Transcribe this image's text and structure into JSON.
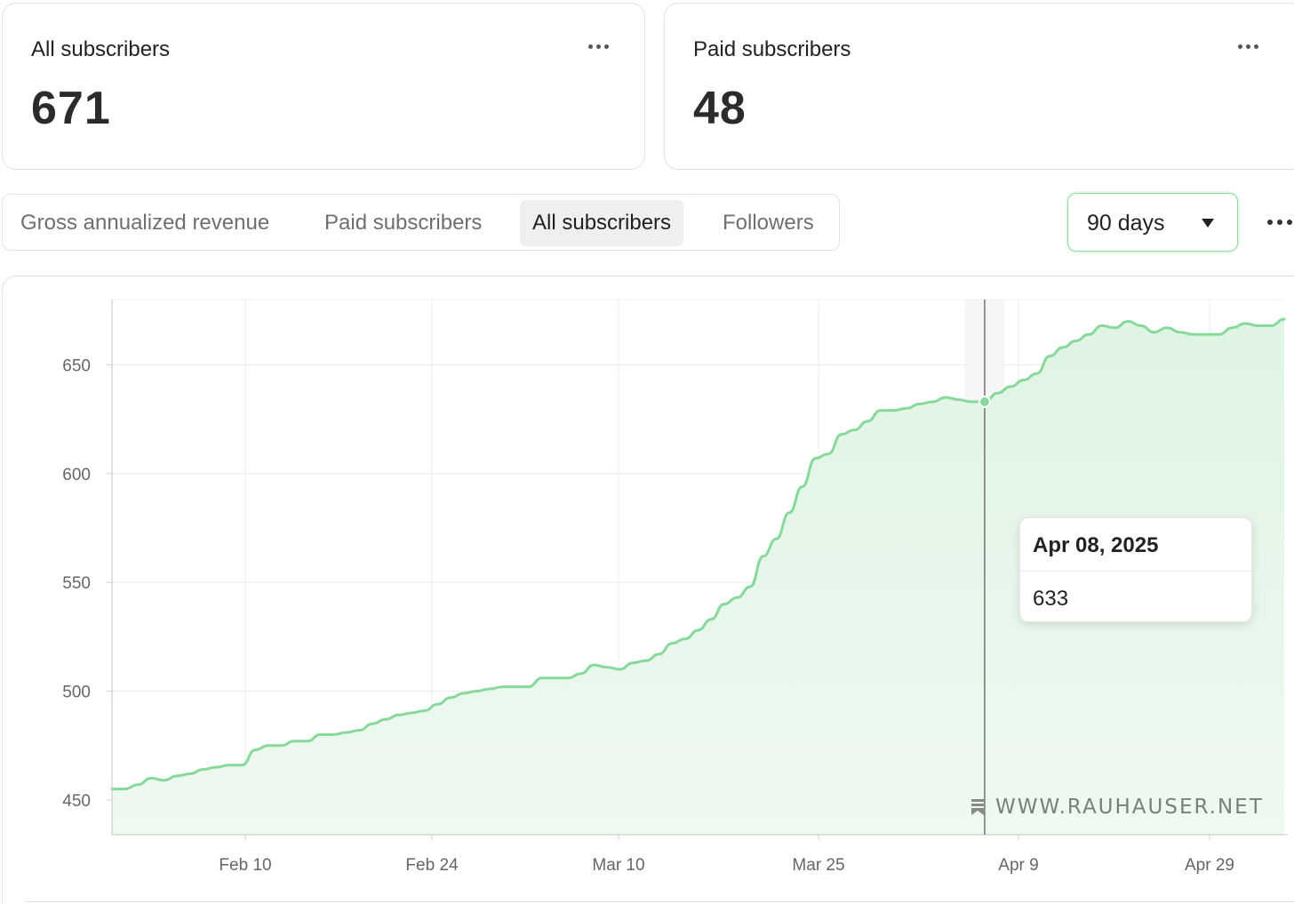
{
  "cards": [
    {
      "title": "All subscribers",
      "value": "671"
    },
    {
      "title": "Paid subscribers",
      "value": "48"
    }
  ],
  "tabs": [
    {
      "label": "Gross annualized revenue",
      "active": false
    },
    {
      "label": "Paid subscribers",
      "active": false
    },
    {
      "label": "All subscribers",
      "active": true
    },
    {
      "label": "Followers",
      "active": false
    }
  ],
  "range_select": {
    "value": "90 days"
  },
  "tooltip": {
    "date": "Apr 08, 2025",
    "value": "633"
  },
  "watermark": {
    "text": "WWW.RAUHAUSER.NET",
    "icon": "bookmark-icon"
  },
  "colors": {
    "line": "#86d99a",
    "fill": "#e3f6e7",
    "accent_border": "#8fdc9f"
  },
  "chart_data": {
    "type": "area",
    "title": "",
    "xlabel": "",
    "ylabel": "",
    "x_ticks": [
      "Feb 10",
      "Feb 24",
      "Mar 10",
      "Mar 25",
      "Apr 9",
      "Apr 29"
    ],
    "y_ticks": [
      450,
      500,
      550,
      600,
      650
    ],
    "ylim": [
      434,
      680
    ],
    "grid": true,
    "highlight": {
      "x": "2025-04-08",
      "y": 633
    },
    "series": [
      {
        "x": [
          "2025-01-31",
          "2025-02-01",
          "2025-02-02",
          "2025-02-03",
          "2025-02-04",
          "2025-02-05",
          "2025-02-06",
          "2025-02-07",
          "2025-02-08",
          "2025-02-09",
          "2025-02-10",
          "2025-02-11",
          "2025-02-12",
          "2025-02-13",
          "2025-02-14",
          "2025-02-15",
          "2025-02-16",
          "2025-02-17",
          "2025-02-18",
          "2025-02-19",
          "2025-02-20",
          "2025-02-21",
          "2025-02-22",
          "2025-02-23",
          "2025-02-24",
          "2025-02-25",
          "2025-02-26",
          "2025-02-27",
          "2025-02-28",
          "2025-03-01",
          "2025-03-02",
          "2025-03-03",
          "2025-03-04",
          "2025-03-05",
          "2025-03-06",
          "2025-03-07",
          "2025-03-08",
          "2025-03-09",
          "2025-03-10",
          "2025-03-11",
          "2025-03-12",
          "2025-03-13",
          "2025-03-14",
          "2025-03-15",
          "2025-03-16",
          "2025-03-17",
          "2025-03-18",
          "2025-03-19",
          "2025-03-20",
          "2025-03-21",
          "2025-03-22",
          "2025-03-23",
          "2025-03-24",
          "2025-03-25",
          "2025-03-26",
          "2025-03-27",
          "2025-03-28",
          "2025-03-29",
          "2025-03-30",
          "2025-03-31",
          "2025-04-01",
          "2025-04-02",
          "2025-04-03",
          "2025-04-04",
          "2025-04-05",
          "2025-04-06",
          "2025-04-07",
          "2025-04-08",
          "2025-04-09",
          "2025-04-10",
          "2025-04-11",
          "2025-04-12",
          "2025-04-13",
          "2025-04-14",
          "2025-04-15",
          "2025-04-16",
          "2025-04-17",
          "2025-04-18",
          "2025-04-19",
          "2025-04-20",
          "2025-04-21",
          "2025-04-22",
          "2025-04-23",
          "2025-04-24",
          "2025-04-25",
          "2025-04-26",
          "2025-04-27",
          "2025-04-28",
          "2025-04-29",
          "2025-04-30",
          "2025-05-01"
        ],
        "values": [
          455,
          455,
          457,
          460,
          459,
          461,
          462,
          464,
          465,
          466,
          466,
          473,
          475,
          475,
          477,
          477,
          480,
          480,
          481,
          482,
          485,
          487,
          489,
          490,
          491,
          494,
          497,
          499,
          500,
          501,
          502,
          502,
          502,
          506,
          506,
          506,
          508,
          512,
          511,
          510,
          513,
          514,
          517,
          522,
          524,
          528,
          533,
          540,
          543,
          548,
          562,
          570,
          582,
          594,
          607,
          609,
          618,
          620,
          624,
          629,
          629,
          630,
          632,
          633,
          635,
          634,
          633,
          633,
          637,
          640,
          643,
          646,
          654,
          658,
          661,
          664,
          668,
          667,
          670,
          668,
          665,
          667,
          665,
          664,
          664,
          664,
          667,
          669,
          668,
          668,
          671
        ]
      }
    ]
  }
}
